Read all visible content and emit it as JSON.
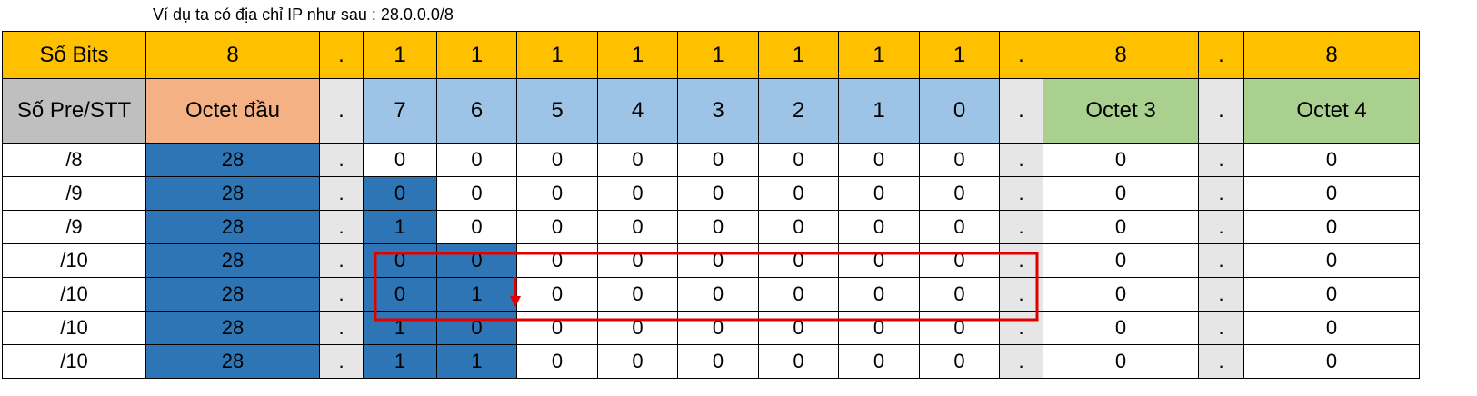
{
  "caption": "Ví dụ ta có địa chỉ IP như sau : 28.0.0.0/8",
  "header_bits": [
    "Số Bits",
    "8",
    ".",
    "1",
    "1",
    "1",
    "1",
    "1",
    "1",
    "1",
    "1",
    ".",
    "8",
    ".",
    "8"
  ],
  "header_labels": [
    "Số Pre/STT",
    "Octet đầu",
    ".",
    "7",
    "6",
    "5",
    "4",
    "3",
    "2",
    "1",
    "0",
    ".",
    "Octet 3",
    ".",
    "Octet 4"
  ],
  "rows": [
    [
      "/8",
      "28",
      ".",
      "0",
      "0",
      "0",
      "0",
      "0",
      "0",
      "0",
      "0",
      ".",
      "0",
      ".",
      "0"
    ],
    [
      "/9",
      "28",
      ".",
      "0",
      "0",
      "0",
      "0",
      "0",
      "0",
      "0",
      "0",
      ".",
      "0",
      ".",
      "0"
    ],
    [
      "/9",
      "28",
      ".",
      "1",
      "0",
      "0",
      "0",
      "0",
      "0",
      "0",
      "0",
      ".",
      "0",
      ".",
      "0"
    ],
    [
      "/10",
      "28",
      ".",
      "0",
      "0",
      "0",
      "0",
      "0",
      "0",
      "0",
      "0",
      ".",
      "0",
      ".",
      "0"
    ],
    [
      "/10",
      "28",
      ".",
      "0",
      "1",
      "0",
      "0",
      "0",
      "0",
      "0",
      "0",
      ".",
      "0",
      ".",
      "0"
    ],
    [
      "/10",
      "28",
      ".",
      "1",
      "0",
      "0",
      "0",
      "0",
      "0",
      "0",
      "0",
      ".",
      "0",
      ".",
      "0"
    ],
    [
      "/10",
      "28",
      ".",
      "1",
      "1",
      "0",
      "0",
      "0",
      "0",
      "0",
      "0",
      ".",
      "0",
      ".",
      "0"
    ]
  ],
  "colors": {
    "header_yellow": "#ffc000",
    "label_gray": "#bfbfbf",
    "octet1_orange": "#f4b183",
    "bits_blue": "#9dc3e6",
    "octet_green": "#a9d08e",
    "dot_gray": "#e6e6e6",
    "value_blue": "#2e75b6",
    "highlight_red": "#e00000"
  },
  "annotations": [
    "red-highlight-box",
    "red-down-arrow-icon"
  ]
}
